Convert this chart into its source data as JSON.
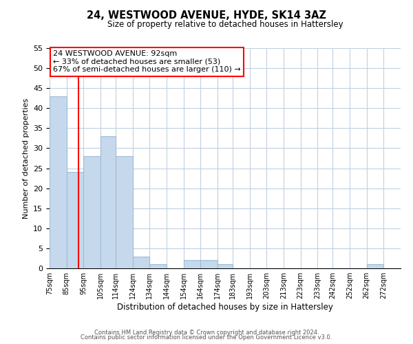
{
  "title": "24, WESTWOOD AVENUE, HYDE, SK14 3AZ",
  "subtitle": "Size of property relative to detached houses in Hattersley",
  "xlabel": "Distribution of detached houses by size in Hattersley",
  "ylabel": "Number of detached properties",
  "bar_edges": [
    75,
    85,
    95,
    105,
    114,
    124,
    134,
    144,
    154,
    164,
    174,
    183,
    193,
    203,
    213,
    223,
    233,
    242,
    252,
    262,
    272
  ],
  "bar_heights": [
    43,
    24,
    28,
    33,
    28,
    3,
    1,
    0,
    2,
    2,
    1,
    0,
    0,
    0,
    0,
    0,
    0,
    0,
    0,
    1,
    0
  ],
  "bar_color": "#c6d9ec",
  "bar_edgecolor": "#9bbcd8",
  "property_line_x": 92,
  "property_line_color": "red",
  "ylim": [
    0,
    55
  ],
  "yticks": [
    0,
    5,
    10,
    15,
    20,
    25,
    30,
    35,
    40,
    45,
    50,
    55
  ],
  "tick_labels": [
    "75sqm",
    "85sqm",
    "95sqm",
    "105sqm",
    "114sqm",
    "124sqm",
    "134sqm",
    "144sqm",
    "154sqm",
    "164sqm",
    "174sqm",
    "183sqm",
    "193sqm",
    "203sqm",
    "213sqm",
    "223sqm",
    "233sqm",
    "242sqm",
    "252sqm",
    "262sqm",
    "272sqm"
  ],
  "annotation_title": "24 WESTWOOD AVENUE: 92sqm",
  "annotation_line1": "← 33% of detached houses are smaller (53)",
  "annotation_line2": "67% of semi-detached houses are larger (110) →",
  "annotation_box_color": "#ffffff",
  "annotation_box_edgecolor": "red",
  "footer1": "Contains HM Land Registry data © Crown copyright and database right 2024.",
  "footer2": "Contains public sector information licensed under the Open Government Licence v3.0.",
  "background_color": "#ffffff",
  "grid_color": "#c0d0e0"
}
